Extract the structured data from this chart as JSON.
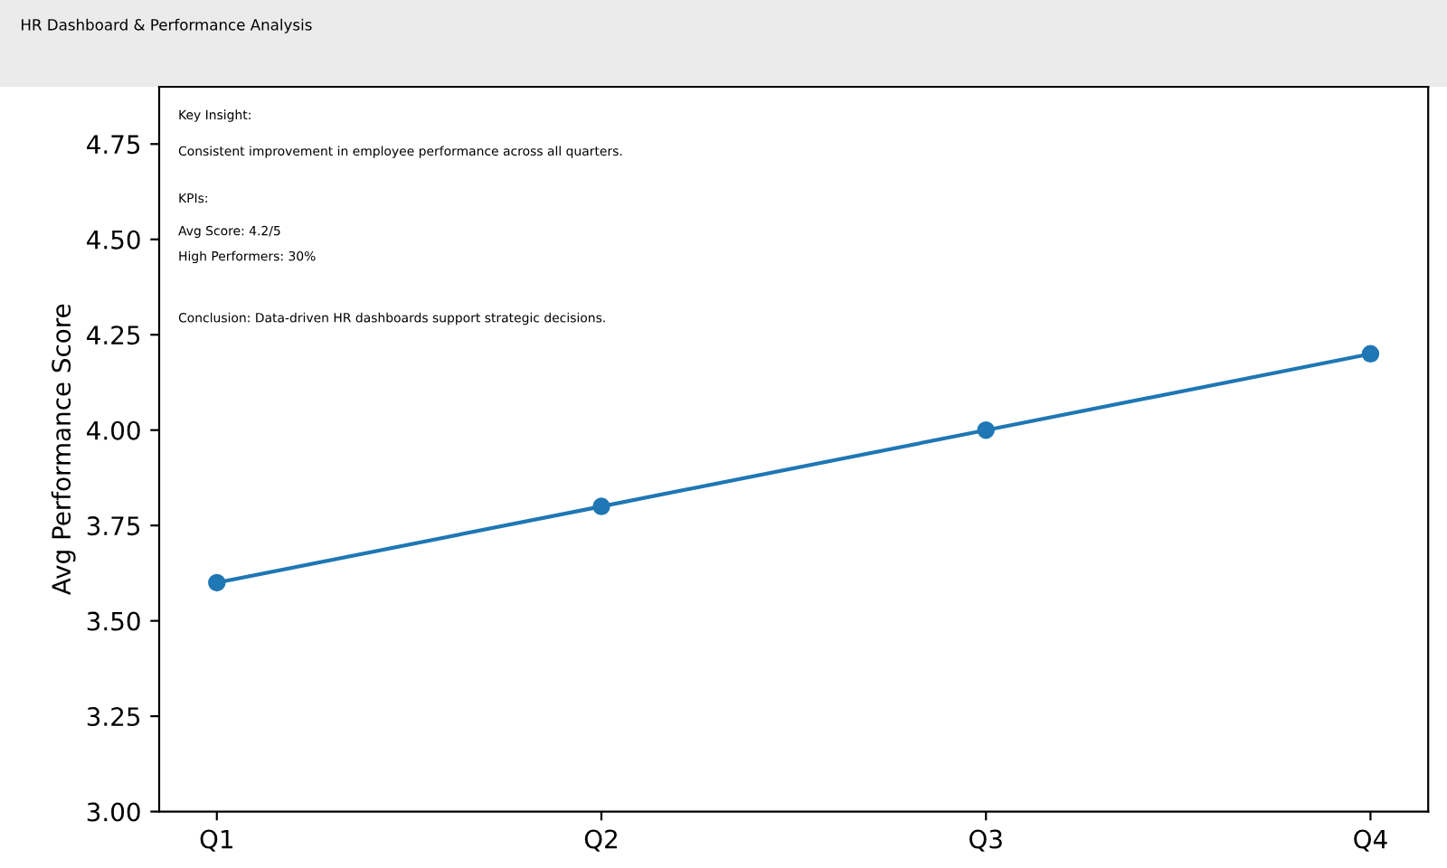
{
  "chart_data": {
    "type": "line",
    "title": "HR Dashboard & Performance Analysis",
    "ylabel": "Avg Performance Score",
    "categories": [
      "Q1",
      "Q2",
      "Q3",
      "Q4"
    ],
    "series": [
      {
        "color": "#1f77b4",
        "values": [
          3.6,
          3.8,
          4.0,
          4.2
        ]
      }
    ],
    "marker": "circle",
    "line_style": "solid",
    "ylim": [
      3.0,
      4.9
    ],
    "yticks": [
      {
        "value": 3.0,
        "label": "3.00"
      },
      3.25,
      {
        "value": 3.5,
        "label": "3.50"
      },
      3.75,
      {
        "value": 4.0,
        "label": "4.00"
      },
      4.25,
      {
        "value": 4.5,
        "label": "4.50"
      },
      4.75
    ],
    "annotations": [
      "Key Insight:",
      "Consistent improvement in employee performance across all quarters.",
      "KPIs:",
      "Avg Score: 4.2/5",
      "High Performers: 30%",
      "Conclusion: Data-driven HR dashboards support strategic decisions."
    ],
    "grid": false,
    "legend": false
  }
}
